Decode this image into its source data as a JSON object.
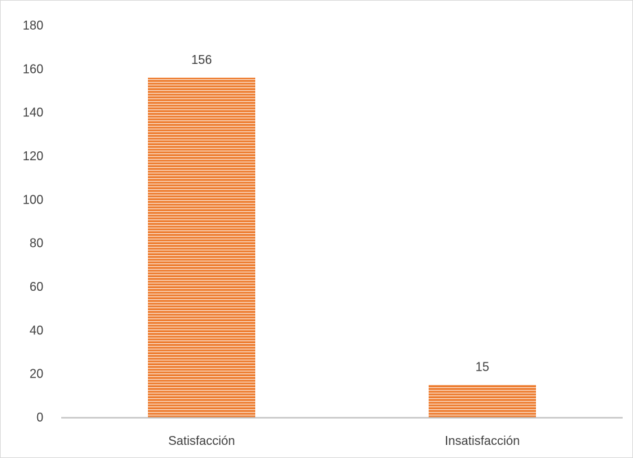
{
  "chart_data": {
    "type": "bar",
    "categories": [
      "Satisfacción",
      "Insatisfacción"
    ],
    "values": [
      156,
      15
    ],
    "data_labels": [
      "156",
      "15"
    ],
    "title": "",
    "xlabel": "",
    "ylabel": "",
    "ylim": [
      0,
      180
    ],
    "yticks": [
      "0",
      "20",
      "40",
      "60",
      "80",
      "100",
      "120",
      "140",
      "160",
      "180"
    ],
    "grid": false,
    "legend": "none",
    "bar_color": "#ed7d31",
    "stripe_color": "#fbe1cf",
    "axis_color": "#bfbfbf"
  }
}
